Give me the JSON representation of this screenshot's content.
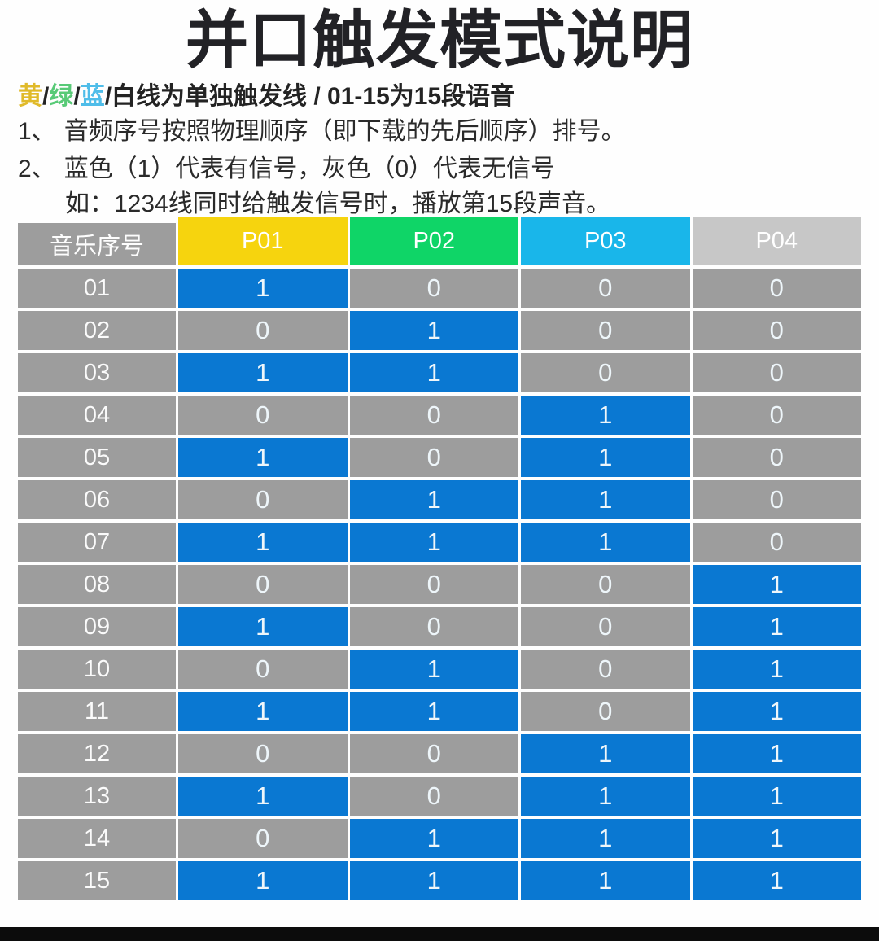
{
  "title": "并口触发模式说明",
  "legend": {
    "parts": [
      {
        "text": "黄",
        "color": "#e0ba2a"
      },
      {
        "text": "/",
        "color": "#232323"
      },
      {
        "text": "绿",
        "color": "#58ca77"
      },
      {
        "text": "/",
        "color": "#232323"
      },
      {
        "text": "蓝",
        "color": "#4fbde9"
      },
      {
        "text": "/",
        "color": "#232323"
      },
      {
        "text": "白线为单独触发线 / 01-15为15段语音",
        "color": "#232323"
      }
    ]
  },
  "notes": [
    {
      "prefix": "1、",
      "text": "音频序号按照物理顺序（即下载的先后顺序）排号。"
    },
    {
      "prefix": "2、",
      "text": "蓝色（1）代表有信号，灰色（0）代表无信号"
    },
    {
      "prefix": "",
      "text": "如：1234线同时给触发信号时，播放第15段声音。"
    }
  ],
  "table": {
    "corner_header": "音乐序号",
    "columns": [
      {
        "label": "P01",
        "color": "#f6d40e"
      },
      {
        "label": "P02",
        "color": "#0fd567"
      },
      {
        "label": "P03",
        "color": "#19b6ea"
      },
      {
        "label": "P04",
        "color": "#c7c7c7"
      }
    ],
    "cell_on_color": "#0a78d2",
    "cell_off_color": "#9d9d9d",
    "rows": [
      {
        "label": "01",
        "values": [
          1,
          0,
          0,
          0
        ]
      },
      {
        "label": "02",
        "values": [
          0,
          1,
          0,
          0
        ]
      },
      {
        "label": "03",
        "values": [
          1,
          1,
          0,
          0
        ]
      },
      {
        "label": "04",
        "values": [
          0,
          0,
          1,
          0
        ]
      },
      {
        "label": "05",
        "values": [
          1,
          0,
          1,
          0
        ]
      },
      {
        "label": "06",
        "values": [
          0,
          1,
          1,
          0
        ]
      },
      {
        "label": "07",
        "values": [
          1,
          1,
          1,
          0
        ]
      },
      {
        "label": "08",
        "values": [
          0,
          0,
          0,
          1
        ]
      },
      {
        "label": "09",
        "values": [
          1,
          0,
          0,
          1
        ]
      },
      {
        "label": "10",
        "values": [
          0,
          1,
          0,
          1
        ]
      },
      {
        "label": "11",
        "values": [
          1,
          1,
          0,
          1
        ]
      },
      {
        "label": "12",
        "values": [
          0,
          0,
          1,
          1
        ]
      },
      {
        "label": "13",
        "values": [
          1,
          0,
          1,
          1
        ]
      },
      {
        "label": "14",
        "values": [
          0,
          1,
          1,
          1
        ]
      },
      {
        "label": "15",
        "values": [
          1,
          1,
          1,
          1
        ]
      }
    ]
  },
  "footer": {
    "bar_color": "#0c0c0c"
  }
}
